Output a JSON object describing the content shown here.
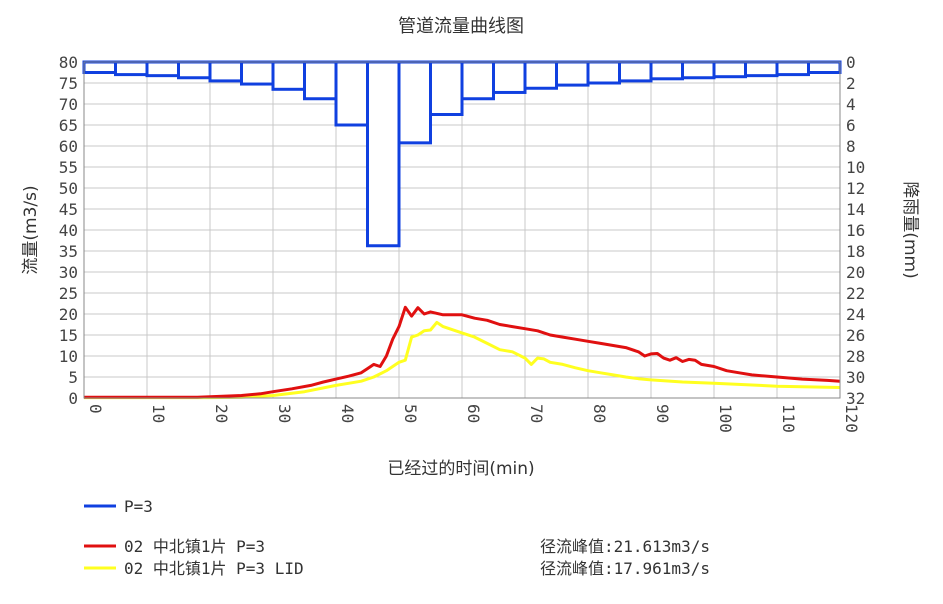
{
  "chart_data": {
    "type": "line",
    "title": "管道流量曲线图",
    "xlabel": "已经过的时间(min)",
    "ylabel": "流量(m3/s)",
    "y2label": "降雨量(mm)",
    "xlim": [
      0,
      120
    ],
    "ylim": [
      0,
      80
    ],
    "y2lim": [
      32,
      0
    ],
    "x_ticks": [
      0,
      10,
      20,
      30,
      40,
      50,
      60,
      70,
      80,
      90,
      100,
      110,
      120
    ],
    "y_ticks": [
      0,
      5,
      10,
      15,
      20,
      25,
      30,
      35,
      40,
      45,
      50,
      55,
      60,
      65,
      70,
      75,
      80
    ],
    "y2_ticks": [
      0,
      2,
      4,
      6,
      8,
      10,
      12,
      14,
      16,
      18,
      20,
      22,
      24,
      26,
      28,
      30,
      32
    ],
    "grid": true,
    "colors": {
      "rain": "#1040e0",
      "flow": "#e01010",
      "lid": "#ffff20"
    },
    "rainfall": {
      "name": "P=3",
      "interval": 5,
      "x": [
        0,
        5,
        10,
        15,
        20,
        25,
        30,
        35,
        40,
        45,
        50,
        55,
        60,
        65,
        70,
        75,
        80,
        85,
        90,
        95,
        100,
        105,
        110,
        115
      ],
      "values": [
        1.0,
        1.2,
        1.3,
        1.5,
        1.8,
        2.1,
        2.6,
        3.5,
        6.0,
        17.5,
        7.7,
        5.0,
        3.5,
        2.9,
        2.5,
        2.2,
        2.0,
        1.8,
        1.6,
        1.5,
        1.4,
        1.3,
        1.2,
        1.0
      ]
    },
    "series": [
      {
        "name": "02 中北镇1片 P=3",
        "peak_label": "径流峰值:21.613m3/s",
        "points": [
          [
            0,
            0.2
          ],
          [
            10,
            0.2
          ],
          [
            18,
            0.2
          ],
          [
            22,
            0.4
          ],
          [
            25,
            0.6
          ],
          [
            28,
            1.0
          ],
          [
            30,
            1.5
          ],
          [
            33,
            2.2
          ],
          [
            36,
            3.0
          ],
          [
            38,
            3.8
          ],
          [
            40,
            4.5
          ],
          [
            42,
            5.2
          ],
          [
            44,
            6.0
          ],
          [
            45,
            7.0
          ],
          [
            46,
            8.0
          ],
          [
            47,
            7.5
          ],
          [
            48,
            10.0
          ],
          [
            49,
            14.0
          ],
          [
            50,
            17.0
          ],
          [
            51,
            21.6
          ],
          [
            52,
            19.5
          ],
          [
            53,
            21.5
          ],
          [
            54,
            20.0
          ],
          [
            55,
            20.5
          ],
          [
            57,
            19.8
          ],
          [
            60,
            19.8
          ],
          [
            62,
            19.0
          ],
          [
            64,
            18.5
          ],
          [
            66,
            17.5
          ],
          [
            68,
            17.0
          ],
          [
            70,
            16.5
          ],
          [
            72,
            16.0
          ],
          [
            74,
            15.0
          ],
          [
            76,
            14.5
          ],
          [
            78,
            14.0
          ],
          [
            80,
            13.5
          ],
          [
            82,
            13.0
          ],
          [
            84,
            12.5
          ],
          [
            86,
            12.0
          ],
          [
            88,
            11.0
          ],
          [
            89,
            10.0
          ],
          [
            90,
            10.5
          ],
          [
            91,
            10.6
          ],
          [
            92,
            9.5
          ],
          [
            93,
            9.0
          ],
          [
            94,
            9.6
          ],
          [
            95,
            8.7
          ],
          [
            96,
            9.2
          ],
          [
            97,
            9.0
          ],
          [
            98,
            8.0
          ],
          [
            100,
            7.5
          ],
          [
            102,
            6.5
          ],
          [
            104,
            6.0
          ],
          [
            106,
            5.5
          ],
          [
            110,
            5.0
          ],
          [
            114,
            4.5
          ],
          [
            118,
            4.2
          ],
          [
            120,
            4.0
          ]
        ]
      },
      {
        "name": "02 中北镇1片 P=3 LID",
        "peak_label": "径流峰值:17.961m3/s",
        "points": [
          [
            0,
            0.1
          ],
          [
            10,
            0.1
          ],
          [
            20,
            0.1
          ],
          [
            25,
            0.2
          ],
          [
            30,
            0.6
          ],
          [
            35,
            1.5
          ],
          [
            40,
            3.0
          ],
          [
            42,
            3.5
          ],
          [
            44,
            4.0
          ],
          [
            46,
            5.0
          ],
          [
            48,
            6.5
          ],
          [
            50,
            8.5
          ],
          [
            51,
            9.0
          ],
          [
            52,
            14.5
          ],
          [
            53,
            15.0
          ],
          [
            54,
            16.0
          ],
          [
            55,
            16.2
          ],
          [
            56,
            18.0
          ],
          [
            57,
            17.0
          ],
          [
            58,
            16.5
          ],
          [
            60,
            15.5
          ],
          [
            62,
            14.5
          ],
          [
            64,
            13.0
          ],
          [
            66,
            11.5
          ],
          [
            68,
            11.0
          ],
          [
            70,
            9.5
          ],
          [
            71,
            8.0
          ],
          [
            72,
            9.5
          ],
          [
            73,
            9.3
          ],
          [
            74,
            8.5
          ],
          [
            76,
            8.0
          ],
          [
            78,
            7.2
          ],
          [
            80,
            6.5
          ],
          [
            82,
            6.0
          ],
          [
            84,
            5.5
          ],
          [
            86,
            5.0
          ],
          [
            88,
            4.6
          ],
          [
            90,
            4.3
          ],
          [
            95,
            3.8
          ],
          [
            100,
            3.5
          ],
          [
            110,
            2.8
          ],
          [
            120,
            2.5
          ]
        ]
      }
    ],
    "legend_position": "bottom-left"
  }
}
